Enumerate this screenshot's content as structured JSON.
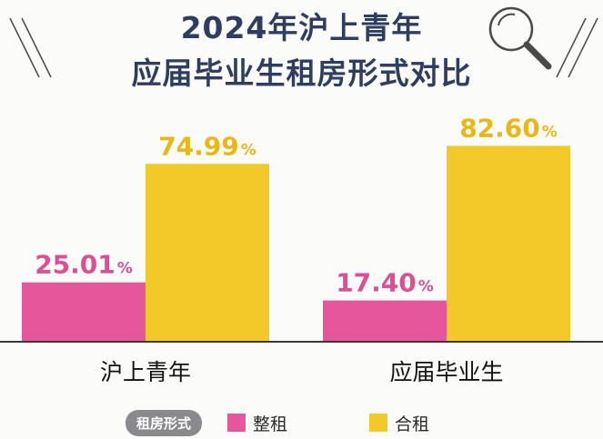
{
  "title": [
    "2024年沪上青年",
    "应届毕业生租房形式对比"
  ],
  "colors": {
    "title": "#2f3d5e",
    "pink": "#e5569a",
    "yellow": "#f3c92a",
    "label_pink": "#db4f93",
    "label_yellow": "#e9b716",
    "decor": "#4a4a4a"
  },
  "decor": {
    "magnifier": "magnifier-icon"
  },
  "legend": {
    "label": "租房形式",
    "items": [
      "整租",
      "合租"
    ]
  },
  "chart_data": {
    "type": "bar",
    "title": "2024年沪上青年 应届毕业生租房形式对比",
    "categories": [
      "沪上青年",
      "应届毕业生"
    ],
    "series": [
      {
        "name": "整租",
        "values": [
          25.01,
          17.4
        ],
        "labels": [
          "25.01",
          "17.40"
        ]
      },
      {
        "name": "合租",
        "values": [
          74.99,
          82.6
        ],
        "labels": [
          "74.99",
          "82.60"
        ]
      }
    ],
    "unit": "%",
    "ylim": [
      0,
      100
    ],
    "grid": false,
    "legend_position": "bottom"
  }
}
